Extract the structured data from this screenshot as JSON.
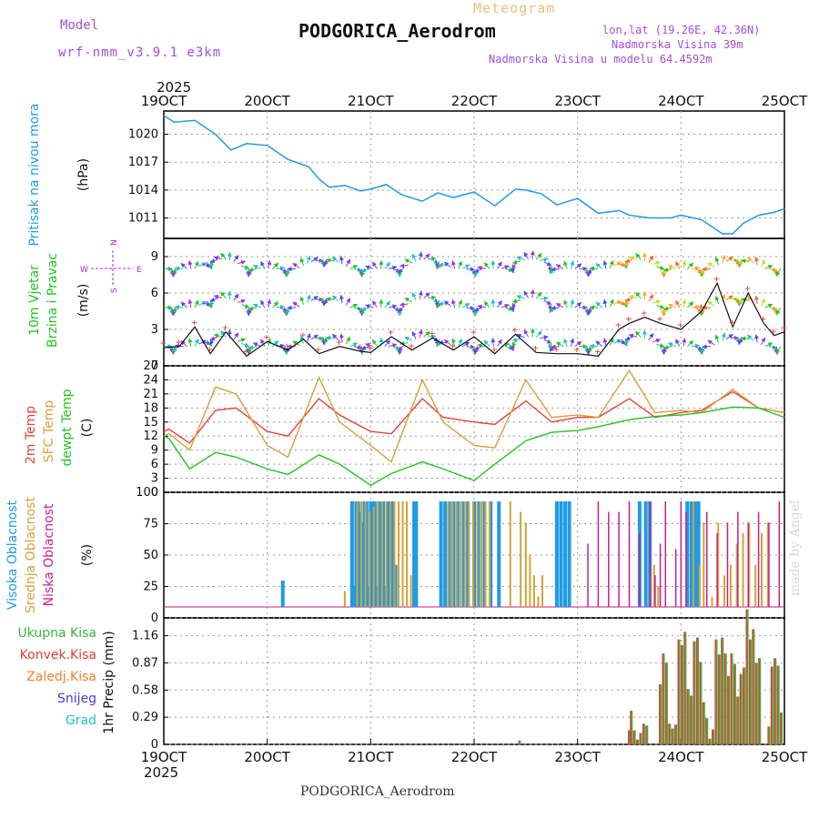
{
  "header": {
    "model_label": "Model",
    "model_name": "wrf-nmm_v3.9.1 e3km",
    "meteogram": "Meteogram",
    "station": "PODGORICA_Aerodrom",
    "lonlat": "lon,lat (19.26E, 42.36N)",
    "elevation": "Nadmorska Visina 39m",
    "model_elevation": "Nadmorska Visina u modelu 64.4592m",
    "footer_station": "PODGORICA_Aerodrom",
    "credit": "made by Angel",
    "year_top": "2025",
    "year_bottom": "2025"
  },
  "colors": {
    "pressure": "#1e9be6",
    "temp2m": "#e8403a",
    "sfc": "#d4a23a",
    "dewpt": "#22c322",
    "high_cloud": "#1e9be6",
    "mid_cloud": "#d4a23a",
    "low_cloud": "#c81e8c",
    "total_precip": "#3cb43c",
    "conv_precip": "#e23c3c",
    "strat_precip": "#f08030",
    "snow": "#4040e0",
    "hail": "#20c0c0",
    "wind_arrow_max": "#ff3060",
    "wind_purple": "#9b30e0",
    "wind_left": "#22c322",
    "wind_mid": "#111111"
  },
  "x_ticks": [
    "19OCT",
    "20OCT",
    "21OCT",
    "22OCT",
    "23OCT",
    "24OCT",
    "25OCT"
  ],
  "compass": {
    "n": "N",
    "s": "S",
    "e": "E",
    "w": "W"
  },
  "chart_data": [
    {
      "type": "line",
      "title": "Pritisak na nivou mora",
      "ylabel": "(hPa)",
      "yticks": [
        "1011",
        "1014",
        "1017",
        "1020"
      ],
      "ylim": [
        1008.8,
        1022.5
      ],
      "x_days": [
        0,
        0.1,
        0.3,
        0.5,
        0.65,
        0.8,
        1.0,
        1.2,
        1.4,
        1.5,
        1.6,
        1.75,
        1.9,
        2.0,
        2.15,
        2.3,
        2.5,
        2.65,
        2.8,
        3.0,
        3.2,
        3.4,
        3.5,
        3.65,
        3.8,
        4.0,
        4.2,
        4.4,
        4.5,
        4.7,
        4.9,
        5.0,
        5.2,
        5.4,
        5.5,
        5.6,
        5.75,
        5.9,
        6.0
      ],
      "values": [
        1022,
        1021.3,
        1021.5,
        1020,
        1018.3,
        1019,
        1018.8,
        1017.3,
        1016.5,
        1015.2,
        1014.3,
        1014.5,
        1013.9,
        1014.1,
        1014.6,
        1013.5,
        1012.8,
        1013.7,
        1013.2,
        1013.8,
        1012.3,
        1014.1,
        1014,
        1013.6,
        1012.4,
        1013.1,
        1011.5,
        1011.8,
        1011.3,
        1011.0,
        1011.0,
        1011.3,
        1010.8,
        1009.3,
        1009.3,
        1010.4,
        1011.3,
        1011.6,
        1012.0
      ]
    },
    {
      "type": "line",
      "title": "10m Vjetar Brzina i Pravac",
      "ylabel": "(m/s)",
      "yticks": [
        "0",
        "3",
        "6",
        "9"
      ],
      "ylim": [
        0,
        10.5
      ],
      "x_days": [
        0,
        0.15,
        0.3,
        0.45,
        0.6,
        0.8,
        1.0,
        1.2,
        1.35,
        1.5,
        1.7,
        1.9,
        2.0,
        2.2,
        2.4,
        2.6,
        2.8,
        3.0,
        3.2,
        3.4,
        3.6,
        3.8,
        4.0,
        4.2,
        4.4,
        4.5,
        4.65,
        4.8,
        5.0,
        5.2,
        5.35,
        5.5,
        5.65,
        5.8,
        5.9,
        6.0
      ],
      "values": [
        1.5,
        1.6,
        3.2,
        1.0,
        2.8,
        0.8,
        2.0,
        1.3,
        2.2,
        1.0,
        1.6,
        1.2,
        1.1,
        2.4,
        1.3,
        2.3,
        1.3,
        2.4,
        1.0,
        2.6,
        1.1,
        1.0,
        1.0,
        0.8,
        3.0,
        3.5,
        4.0,
        3.5,
        3.0,
        4.5,
        6.8,
        3.2,
        6.0,
        3.5,
        2.5,
        2.8
      ]
    },
    {
      "type": "line",
      "title": "2m Temp / SFC Temp / dewpt Temp",
      "ylabel": "(C)",
      "yticks": [
        "0",
        "3",
        "6",
        "9",
        "12",
        "15",
        "18",
        "21",
        "24",
        "27"
      ],
      "ylim": [
        0,
        27
      ],
      "series": [
        {
          "name": "2m Temp",
          "x_days": [
            0,
            0.05,
            0.25,
            0.5,
            0.7,
            1.0,
            1.2,
            1.5,
            1.7,
            2.0,
            2.2,
            2.5,
            2.7,
            3.0,
            3.2,
            3.5,
            3.75,
            4.0,
            4.2,
            4.5,
            4.75,
            5.0,
            5.2,
            5.5,
            5.75,
            6.0
          ],
          "values": [
            13,
            13.5,
            10.5,
            17.5,
            18,
            13,
            12,
            20,
            16.5,
            13,
            12.5,
            20,
            16,
            15,
            14.5,
            19.5,
            15,
            16,
            16,
            20,
            16,
            17,
            17.5,
            21.5,
            18,
            17
          ]
        },
        {
          "name": "SFC Temp",
          "x_days": [
            0,
            0.05,
            0.25,
            0.5,
            0.7,
            1.0,
            1.2,
            1.5,
            1.7,
            2.0,
            2.2,
            2.5,
            2.7,
            3.0,
            3.2,
            3.5,
            3.75,
            4.0,
            4.2,
            4.5,
            4.75,
            5.0,
            5.2,
            5.5,
            5.75,
            6.0
          ],
          "values": [
            12,
            12.5,
            9,
            22.5,
            21,
            10,
            7.5,
            24.5,
            15,
            10,
            6.5,
            24,
            15,
            10,
            9.5,
            24,
            16,
            16.5,
            16,
            26,
            17,
            17.5,
            17,
            22,
            18,
            17
          ]
        },
        {
          "name": "dewpt Temp",
          "x_days": [
            0,
            0.05,
            0.25,
            0.5,
            0.7,
            1.0,
            1.2,
            1.5,
            1.7,
            2.0,
            2.2,
            2.5,
            2.7,
            3.0,
            3.2,
            3.5,
            3.75,
            4.0,
            4.2,
            4.5,
            4.75,
            5.0,
            5.2,
            5.5,
            5.75,
            6.0
          ],
          "values": [
            12,
            11.5,
            5,
            8.5,
            7.5,
            5,
            3.8,
            8,
            6,
            1.5,
            4,
            6.5,
            5,
            2.5,
            6,
            11,
            12.8,
            13.2,
            14,
            15.5,
            16.2,
            16.5,
            17,
            18.2,
            18,
            16
          ]
        }
      ]
    },
    {
      "type": "bar",
      "title": "Visoka Oblacnost / Srednja Oblacnost / Niska Oblacnost",
      "ylabel": "(%)",
      "yticks": [
        "0",
        "25",
        "50",
        "75",
        "100"
      ],
      "ylim": [
        0,
        100
      ],
      "series": [
        {
          "name": "Visoka Oblacnost",
          "x_days": [
            1.15,
            1.82,
            1.84,
            1.86,
            1.88,
            1.9,
            1.92,
            1.94,
            1.96,
            1.98,
            2.0,
            2.02,
            2.04,
            2.06,
            2.08,
            2.1,
            2.12,
            2.14,
            2.16,
            2.18,
            2.2,
            2.22,
            2.24,
            2.42,
            2.44,
            2.68,
            2.72,
            2.76,
            2.8,
            2.84,
            2.9,
            2.94,
            3.0,
            3.04,
            3.1,
            3.16,
            3.24,
            3.8,
            3.84,
            3.88,
            3.92,
            4.6,
            4.66,
            4.7,
            5.06,
            5.1,
            5.14,
            5.17
          ],
          "values": [
            25,
            100,
            20,
            100,
            100,
            90,
            80,
            100,
            100,
            20,
            100,
            100,
            100,
            20,
            100,
            100,
            100,
            20,
            100,
            100,
            100,
            100,
            40,
            100,
            100,
            100,
            100,
            100,
            100,
            100,
            100,
            100,
            100,
            100,
            100,
            100,
            100,
            100,
            100,
            100,
            100,
            100,
            100,
            100,
            100,
            100,
            100,
            100
          ]
        },
        {
          "name": "Srednja Oblacnost",
          "x_days": [
            1.75,
            1.87,
            1.91,
            1.95,
            1.99,
            2.03,
            2.07,
            2.11,
            2.15,
            2.19,
            2.23,
            2.27,
            2.31,
            2.35,
            2.39,
            2.75,
            2.79,
            2.83,
            2.87,
            2.91,
            2.95,
            2.99,
            3.03,
            3.07,
            3.11,
            3.15,
            3.35,
            3.45,
            3.5,
            3.54,
            3.58,
            3.62,
            3.66,
            4.7,
            4.74,
            4.78,
            5.12,
            5.18,
            5.22,
            5.3,
            5.36,
            5.42,
            5.48,
            5.54,
            5.6,
            5.66,
            5.72,
            5.78,
            5.84
          ],
          "values": [
            15,
            100,
            100,
            100,
            90,
            95,
            100,
            100,
            100,
            100,
            100,
            100,
            100,
            100,
            30,
            100,
            100,
            100,
            100,
            100,
            100,
            100,
            100,
            100,
            100,
            100,
            100,
            90,
            80,
            50,
            30,
            10,
            30,
            30,
            40,
            20,
            100,
            40,
            80,
            10,
            80,
            30,
            40,
            60,
            70,
            80,
            40,
            70,
            80
          ]
        },
        {
          "name": "Niska Oblacnost",
          "x_days": [
            4.1,
            4.2,
            4.3,
            4.4,
            4.5,
            4.6,
            4.7,
            4.75,
            4.8,
            4.85,
            4.95,
            5.0,
            5.05,
            5.25,
            5.35,
            5.45,
            5.55,
            5.65,
            5.75,
            5.85,
            5.95
          ],
          "values": [
            60,
            100,
            90,
            90,
            100,
            70,
            100,
            30,
            60,
            100,
            55,
            100,
            90,
            90,
            70,
            80,
            90,
            80,
            90,
            80,
            100
          ]
        }
      ]
    },
    {
      "type": "bar",
      "title": "Ukupna Kisa / Konvek.Kisa / Zaledj.Kisa / Snijeg / Grad",
      "ylabel": "1hr Precip (mm)",
      "yticks": [
        "0",
        "0.29",
        "0.58",
        "0.87",
        "1.16"
      ],
      "ylim": [
        0,
        1.35
      ],
      "legend": [
        "Ukupna Kisa",
        "Konvek.Kisa",
        "Zaledj.Kisa",
        "Snijeg",
        "Grad"
      ],
      "x_days": [
        3.44,
        4.5,
        4.52,
        4.55,
        4.58,
        4.61,
        4.64,
        4.67,
        4.8,
        4.83,
        4.86,
        4.89,
        4.92,
        4.95,
        4.98,
        5.01,
        5.04,
        5.07,
        5.1,
        5.13,
        5.16,
        5.19,
        5.22,
        5.25,
        5.28,
        5.31,
        5.34,
        5.37,
        5.4,
        5.43,
        5.46,
        5.49,
        5.52,
        5.55,
        5.58,
        5.61,
        5.64,
        5.67,
        5.7,
        5.73,
        5.76,
        5.85,
        5.88,
        5.91,
        5.94,
        5.97
      ],
      "values": [
        0.04,
        0.15,
        0.36,
        0.15,
        0.05,
        0.12,
        0.22,
        0.2,
        0.64,
        0.97,
        0.87,
        0.22,
        0.17,
        0.21,
        1.12,
        1.06,
        1.2,
        0.59,
        0.52,
        1.1,
        1.14,
        0.88,
        0.45,
        0.28,
        0.06,
        0.16,
        1.12,
        0.96,
        1.14,
        0.97,
        0.73,
        0.97,
        0.86,
        0.51,
        0.75,
        0.82,
        1.44,
        1.12,
        1.23,
        0.87,
        0.92,
        0.19,
        0.83,
        0.92,
        0.84,
        0.34
      ]
    }
  ]
}
